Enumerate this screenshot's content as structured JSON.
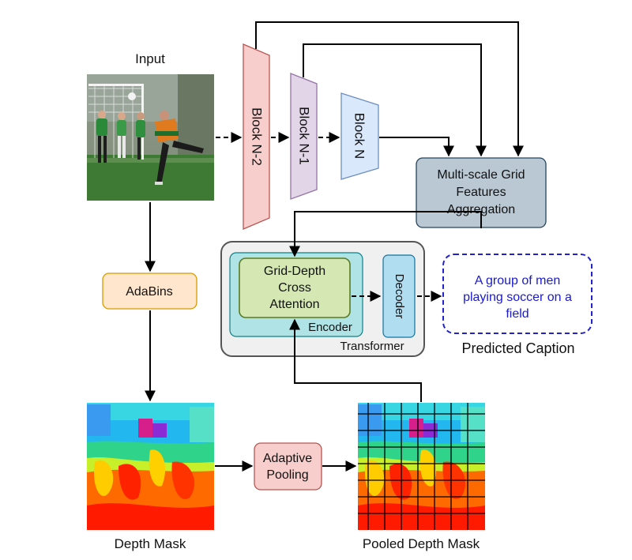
{
  "labels": {
    "input": "Input",
    "depth_mask": "Depth Mask",
    "pooled_depth_mask": "Pooled Depth Mask",
    "predicted_caption": "Predicted Caption",
    "transformer": "Transformer",
    "encoder": "Encoder"
  },
  "blocks": {
    "block_n2": "Block N-2",
    "block_n1": "Block N-1",
    "block_n": "Block N"
  },
  "nodes": {
    "multiscale_line1": "Multi-scale Grid",
    "multiscale_line2": "Features",
    "multiscale_line3": "Aggregation",
    "adabins": "AdaBins",
    "cross_attn_line1": "Grid-Depth",
    "cross_attn_line2": "Cross",
    "cross_attn_line3": "Attention",
    "decoder": "Decoder",
    "adaptive_line1": "Adaptive",
    "adaptive_line2": "Pooling"
  },
  "caption": {
    "line1": "A group of men",
    "line2": "playing soccer on a",
    "line3": "field"
  },
  "colors": {
    "block_n2": "#f8cecc",
    "block_n1": "#e1d5e7",
    "block_n": "#dae8fc",
    "multiscale": "#bac8d3",
    "adabins": "#ffe6cc",
    "adaptive": "#f8cecc",
    "encoder": "#b0e3e6",
    "cross_attn": "#d5e8b4",
    "decoder": "#b1ddf0",
    "caption_text": "#1a1acc"
  }
}
